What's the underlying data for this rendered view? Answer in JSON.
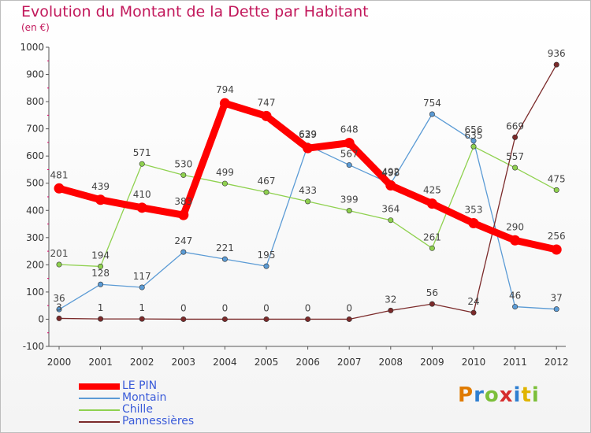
{
  "title": "Evolution du Montant de la Dette par Habitant",
  "subtitle": "(en €)",
  "logo": {
    "text": "Proxiti",
    "letter_colors": [
      "#e07b00",
      "#2f7fd1",
      "#7cbf3a",
      "#d62f2f",
      "#2f7fd1",
      "#e0b400",
      "#7cbf3a"
    ]
  },
  "chart_data": {
    "type": "line",
    "x": [
      "2000",
      "2001",
      "2002",
      "2003",
      "2004",
      "2005",
      "2006",
      "2007",
      "2008",
      "2009",
      "2010",
      "2011",
      "2012"
    ],
    "ylim": [
      -100,
      1000
    ],
    "yticks": [
      "-100",
      "0",
      "100",
      "200",
      "300",
      "400",
      "500",
      "600",
      "700",
      "800",
      "900",
      "1000"
    ],
    "grid": false,
    "legend_position": "bottom-left",
    "series": [
      {
        "name": "LE PIN",
        "color": "#ff0000",
        "values": [
          481,
          439,
          410,
          383,
          794,
          747,
          629,
          648,
          492,
          425,
          353,
          290,
          256
        ],
        "labels": [
          "481",
          "439",
          "410",
          "383",
          "794",
          "747",
          "629",
          "648",
          "492",
          "425",
          "353",
          "290",
          "256"
        ]
      },
      {
        "name": "Montain",
        "color": "#5b9bd5",
        "values": [
          36,
          128,
          117,
          247,
          221,
          195,
          639,
          567,
          498,
          754,
          656,
          46,
          37
        ],
        "labels": [
          "36",
          "128",
          "117",
          "247",
          "221",
          "195",
          "639",
          "567",
          "498",
          "754",
          "656",
          "46",
          "37"
        ]
      },
      {
        "name": "Chille",
        "color": "#8fd14f",
        "values": [
          201,
          194,
          571,
          530,
          499,
          467,
          433,
          399,
          364,
          261,
          635,
          557,
          475
        ],
        "labels": [
          "201",
          "194",
          "571",
          "530",
          "499",
          "467",
          "433",
          "399",
          "364",
          "261",
          "635",
          "557",
          "475"
        ]
      },
      {
        "name": "Pannessières",
        "color": "#7b2a2a",
        "values": [
          3,
          1,
          1,
          0,
          0,
          0,
          0,
          0,
          32,
          56,
          24,
          669,
          936
        ],
        "labels": [
          "3",
          "1",
          "1",
          "0",
          "0",
          "0",
          "0",
          "0",
          "32",
          "56",
          "24",
          "669",
          "936"
        ]
      }
    ]
  }
}
